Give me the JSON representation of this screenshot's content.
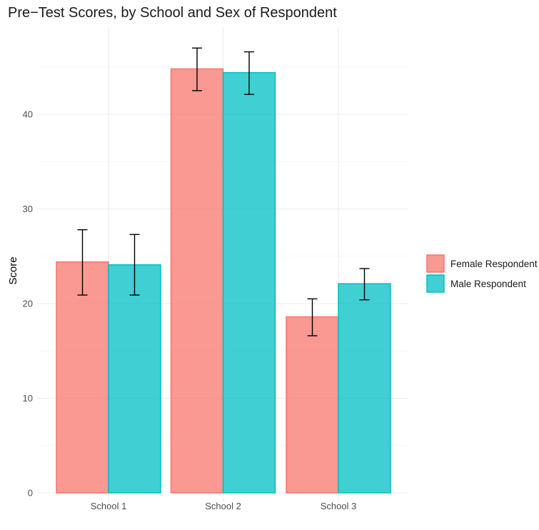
{
  "chart_data": {
    "type": "bar",
    "title": "Pre−Test Scores, by School and Sex of Respondent",
    "xlabel": "",
    "ylabel": "Score",
    "ylim": [
      0,
      50
    ],
    "yticks": [
      0,
      10,
      20,
      30,
      40
    ],
    "grid": true,
    "legend_position": "right",
    "categories": [
      "School 1",
      "School 2",
      "School 3"
    ],
    "series": [
      {
        "name": "Female Respondent",
        "fill": "#F8766D",
        "values": [
          24.4,
          44.8,
          18.6
        ],
        "error_low": [
          20.9,
          42.5,
          16.6
        ],
        "error_high": [
          27.8,
          47.0,
          20.5
        ]
      },
      {
        "name": "Male Respondent",
        "fill": "#00BFC4",
        "values": [
          24.1,
          44.4,
          22.1
        ],
        "error_low": [
          20.9,
          42.1,
          20.4
        ],
        "error_high": [
          27.3,
          46.6,
          23.7
        ]
      }
    ]
  }
}
